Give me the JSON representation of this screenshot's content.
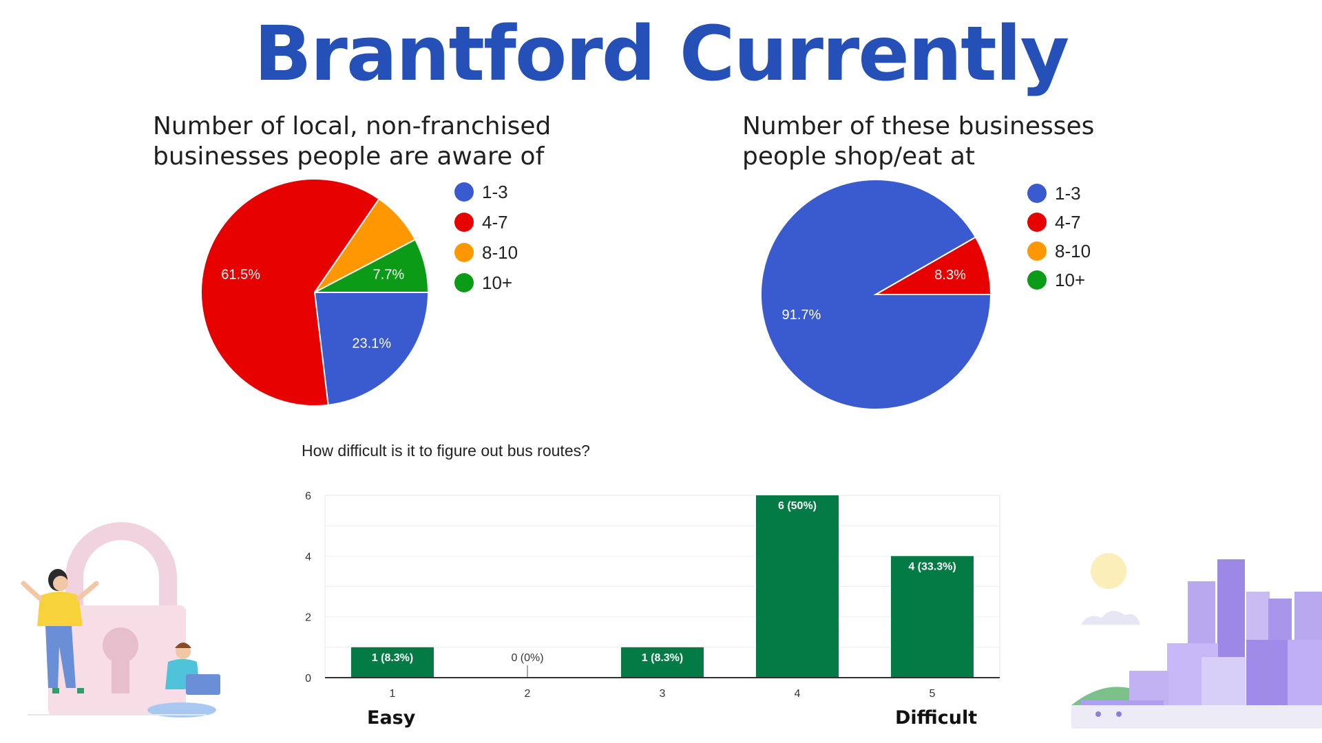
{
  "page_title": "Brantford Currently",
  "colors": {
    "title": "#2450b8",
    "blue": "#3a5bd0",
    "red": "#e60000",
    "orange": "#ff9800",
    "green": "#0c9b16",
    "bar": "#047a44"
  },
  "chart_data": [
    {
      "type": "pie",
      "title": "Number of local, non-franchised\nbusinesses people are aware of",
      "legend": [
        "1-3",
        "4-7",
        "8-10",
        "10+"
      ],
      "legend_position": "right",
      "slices": [
        {
          "label": "1-3",
          "value": 23.1,
          "display": "23.1%"
        },
        {
          "label": "4-7",
          "value": 61.5,
          "display": "61.5%"
        },
        {
          "label": "8-10",
          "value": 7.7,
          "display": ""
        },
        {
          "label": "10+",
          "value": 7.7,
          "display": "7.7%"
        }
      ]
    },
    {
      "type": "pie",
      "title": "Number of these businesses\npeople shop/eat at",
      "legend": [
        "1-3",
        "4-7",
        "8-10",
        "10+"
      ],
      "legend_position": "right",
      "slices": [
        {
          "label": "1-3",
          "value": 91.7,
          "display": "91.7%"
        },
        {
          "label": "4-7",
          "value": 8.3,
          "display": "8.3%"
        },
        {
          "label": "8-10",
          "value": 0,
          "display": ""
        },
        {
          "label": "10+",
          "value": 0,
          "display": ""
        }
      ]
    },
    {
      "type": "bar",
      "title": "How difficult is it to figure out bus routes?",
      "categories": [
        "1",
        "2",
        "3",
        "4",
        "5"
      ],
      "values": [
        1,
        0,
        1,
        6,
        4
      ],
      "data_labels": [
        "1 (8.3%)",
        "0 (0%)",
        "1 (8.3%)",
        "6 (50%)",
        "4 (33.3%)"
      ],
      "ylim": [
        0,
        6
      ],
      "yticks": [
        0,
        2,
        4,
        6
      ],
      "grid": true,
      "end_labels": {
        "low": "Easy",
        "high": "Difficult"
      }
    }
  ]
}
